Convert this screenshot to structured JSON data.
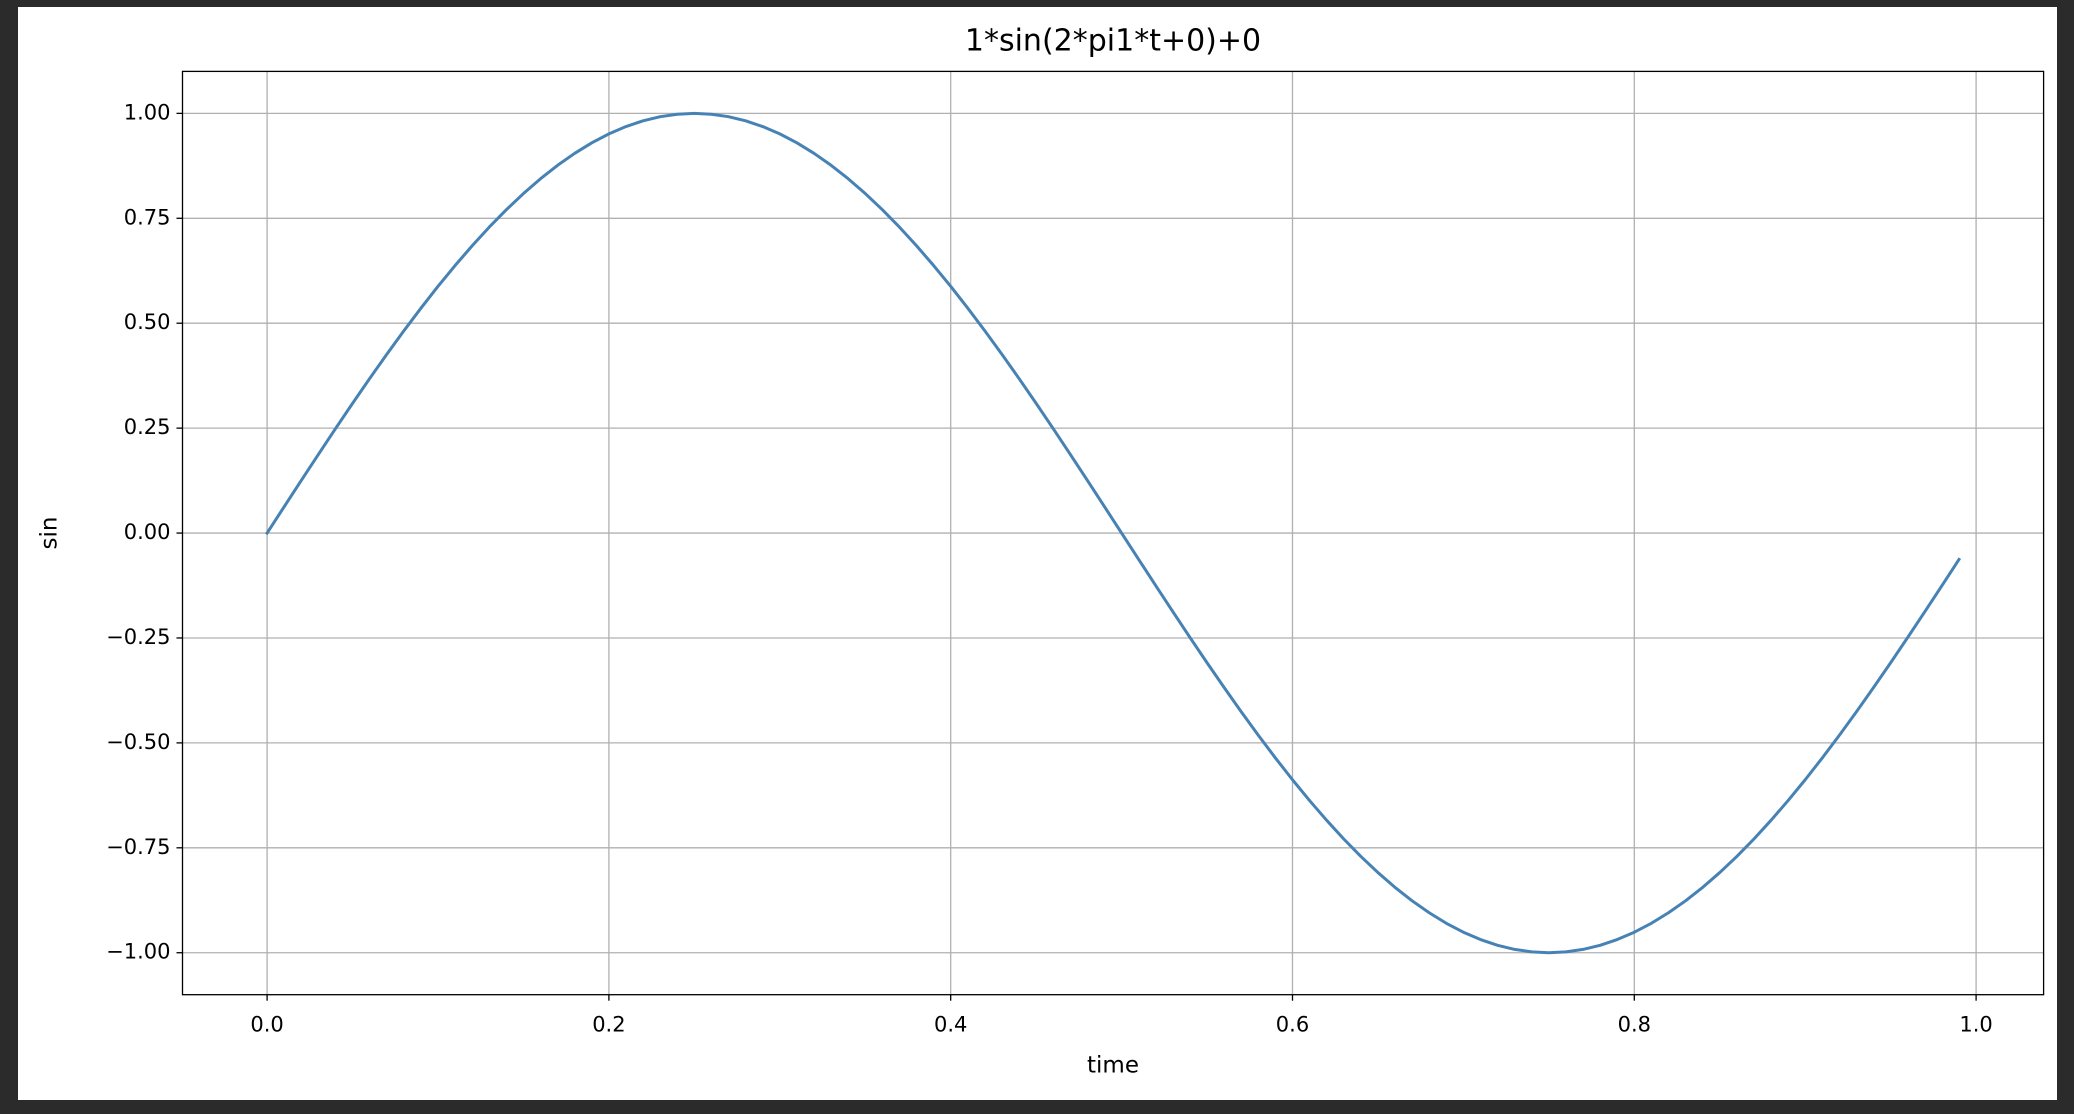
{
  "chart_data": {
    "type": "line",
    "title": "1*sin(2*pi1*t+0)+0",
    "xlabel": "time",
    "ylabel": "sin",
    "x": [
      0,
      0.01,
      0.02,
      0.03,
      0.04,
      0.05,
      0.06,
      0.07,
      0.08,
      0.09,
      0.1,
      0.11,
      0.12,
      0.13,
      0.14,
      0.15,
      0.16,
      0.17,
      0.18,
      0.19,
      0.2,
      0.21,
      0.22,
      0.23,
      0.24,
      0.25,
      0.26,
      0.27,
      0.28,
      0.29,
      0.3,
      0.31,
      0.32,
      0.33,
      0.34,
      0.35,
      0.36,
      0.37,
      0.38,
      0.39,
      0.4,
      0.41,
      0.42,
      0.43,
      0.44,
      0.45,
      0.46,
      0.47,
      0.48,
      0.49,
      0.5,
      0.51,
      0.52,
      0.53,
      0.54,
      0.55,
      0.56,
      0.57,
      0.58,
      0.59,
      0.6,
      0.61,
      0.62,
      0.63,
      0.64,
      0.65,
      0.66,
      0.67,
      0.68,
      0.69,
      0.7,
      0.71,
      0.72,
      0.73,
      0.74,
      0.75,
      0.76,
      0.77,
      0.78,
      0.79,
      0.8,
      0.81,
      0.82,
      0.83,
      0.84,
      0.85,
      0.86,
      0.87,
      0.88,
      0.89,
      0.9,
      0.91,
      0.92,
      0.93,
      0.94,
      0.95,
      0.96,
      0.97,
      0.98,
      0.99
    ],
    "values": [
      0,
      0.0628,
      0.1253,
      0.1874,
      0.2487,
      0.309,
      0.3681,
      0.4258,
      0.4818,
      0.5358,
      0.5878,
      0.6374,
      0.6845,
      0.729,
      0.7705,
      0.809,
      0.8443,
      0.8763,
      0.9048,
      0.9298,
      0.9511,
      0.9686,
      0.9823,
      0.9921,
      0.998,
      1,
      0.998,
      0.9921,
      0.9823,
      0.9686,
      0.9511,
      0.9298,
      0.9048,
      0.8763,
      0.8443,
      0.809,
      0.7705,
      0.729,
      0.6845,
      0.6374,
      0.5878,
      0.5358,
      0.4818,
      0.4258,
      0.3681,
      0.309,
      0.2487,
      0.1874,
      0.1253,
      0.0628,
      0,
      -0.0628,
      -0.1253,
      -0.1874,
      -0.2487,
      -0.309,
      -0.3681,
      -0.4258,
      -0.4818,
      -0.5358,
      -0.5878,
      -0.6374,
      -0.6845,
      -0.729,
      -0.7705,
      -0.809,
      -0.8443,
      -0.8763,
      -0.9048,
      -0.9298,
      -0.9511,
      -0.9686,
      -0.9823,
      -0.9921,
      -0.998,
      -1,
      -0.998,
      -0.9921,
      -0.9823,
      -0.9686,
      -0.9511,
      -0.9298,
      -0.9048,
      -0.8763,
      -0.8443,
      -0.809,
      -0.7705,
      -0.729,
      -0.6845,
      -0.6374,
      -0.5878,
      -0.5358,
      -0.4818,
      -0.4258,
      -0.3681,
      -0.309,
      -0.2487,
      -0.1874,
      -0.1253,
      -0.0628
    ],
    "color": "#4682b4",
    "xlim": [
      -0.0495,
      1.0395
    ],
    "xticks": [
      {
        "value": 0,
        "label": "0.0"
      },
      0.2,
      0.4,
      0.6,
      0.8,
      {
        "value": 1,
        "label": "1.0"
      }
    ],
    "ylim": [
      -1.1,
      1.1
    ],
    "yticks": [
      {
        "value": -1,
        "label": "−1.00"
      },
      {
        "value": -0.75,
        "label": "−0.75"
      },
      {
        "value": -0.5,
        "label": "−0.50"
      },
      {
        "value": -0.25,
        "label": "−0.25"
      },
      {
        "value": 0,
        "label": "0.00"
      },
      {
        "value": 0.25,
        "label": "0.25"
      },
      {
        "value": 0.5,
        "label": "0.50"
      },
      {
        "value": 0.75,
        "label": "0.75"
      },
      {
        "value": 1,
        "label": "1.00"
      }
    ],
    "grid": true
  }
}
